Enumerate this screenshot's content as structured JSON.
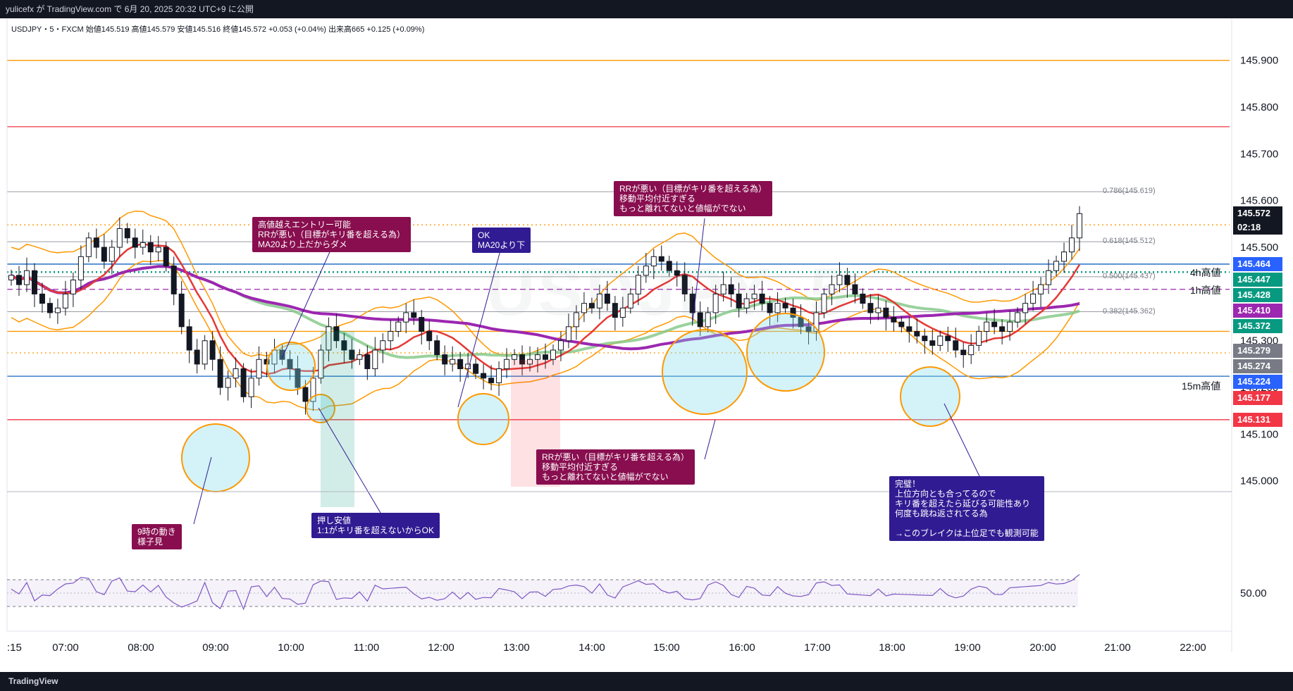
{
  "header": {
    "publish_text": "yulicefx が TradingView.com で 6月 20, 2025 20:32 UTC+9 に公開"
  },
  "symbol_info": "USDJPY・5・FXCM  始値145.519  高値145.579  安値145.516  終値145.572  +0.053 (+0.04%)  出来高665  +0.125 (+0.09%)",
  "watermark": "USDJPY, 5",
  "footer": {
    "logo": "TradingView"
  },
  "colors": {
    "bull": "#131722",
    "bear": "#131722",
    "ma_red": "#e53935",
    "ma_green": "#81c784",
    "ma_purple": "#9c27b0",
    "band": "#ff9800",
    "blue_line": "#1565c0",
    "annotation_maroon": "#880e4f",
    "annotation_navy": "#311b92"
  },
  "chart_data": {
    "type": "candlestick",
    "symbol": "USDJPY",
    "timeframe": "5",
    "x_ticks": [
      ":15",
      "07:00",
      "08:00",
      "09:00",
      "10:00",
      "11:00",
      "12:00",
      "13:00",
      "14:00",
      "15:00",
      "16:00",
      "17:00",
      "18:00",
      "19:00",
      "20:00",
      "21:00",
      "22:00"
    ],
    "y_ticks": [
      145.0,
      145.1,
      145.2,
      145.3,
      145.4,
      145.5,
      145.6,
      145.7,
      145.8,
      145.9
    ],
    "y_tick_labels": [
      "145.000",
      "145.100",
      "145.200",
      "145.300",
      "145.400",
      "145.500",
      "145.600",
      "145.700",
      "145.800",
      "145.900"
    ],
    "ylim": [
      144.98,
      145.99
    ],
    "price_tags": [
      {
        "value": 145.572,
        "label": "145.572",
        "sub": "02:18",
        "color": "#131722"
      },
      {
        "value": 145.464,
        "label": "145.464",
        "color": "#2962ff"
      },
      {
        "value": 145.447,
        "label": "145.447",
        "color": "#089981"
      },
      {
        "value": 145.428,
        "label": "145.428",
        "color": "#089981"
      },
      {
        "value": 145.41,
        "label": "145.410",
        "color": "#9c27b0"
      },
      {
        "value": 145.372,
        "label": "145.372",
        "color": "#089981"
      },
      {
        "value": 145.279,
        "label": "145.279",
        "color": "#787b86"
      },
      {
        "value": 145.274,
        "label": "145.274",
        "color": "#787b86"
      },
      {
        "value": 145.224,
        "label": "145.224",
        "color": "#2962ff"
      },
      {
        "value": 145.177,
        "label": "145.177",
        "color": "#f23645"
      },
      {
        "value": 145.131,
        "label": "145.131",
        "color": "#f23645"
      }
    ],
    "horizontal_lines": [
      {
        "value": 145.9,
        "color": "#ff9800",
        "style": "solid",
        "label": ""
      },
      {
        "value": 145.758,
        "color": "#f23645",
        "style": "solid",
        "label": ""
      },
      {
        "value": 145.464,
        "color": "#1565c0",
        "style": "solid",
        "label": ""
      },
      {
        "value": 145.447,
        "color": "#089981",
        "style": "dotted",
        "label": "4h高値"
      },
      {
        "value": 145.41,
        "color": "#9c27b0",
        "style": "dashed",
        "label": "1h高値"
      },
      {
        "value": 145.548,
        "color": "#ff9800",
        "style": "dotted",
        "label": ""
      },
      {
        "value": 145.274,
        "color": "#ff9800",
        "style": "dotted",
        "label": ""
      },
      {
        "value": 145.32,
        "color": "#ff9800",
        "style": "solid",
        "label": ""
      },
      {
        "value": 145.224,
        "color": "#1565c0",
        "style": "solid",
        "label": "15m高値"
      },
      {
        "value": 145.131,
        "color": "#f23645",
        "style": "solid",
        "label": ""
      }
    ],
    "fib_levels": [
      {
        "value": 145.619,
        "label": "0.786(145.619)"
      },
      {
        "value": 145.512,
        "label": "0.618(145.512)"
      },
      {
        "value": 145.437,
        "label": "0.500(145.437)"
      },
      {
        "value": 145.362,
        "label": "0.382(145.362)"
      }
    ],
    "ohlc_last": {
      "open": 145.519,
      "high": 145.579,
      "low": 145.516,
      "close": 145.572,
      "volume": 665
    },
    "close_series": [
      145.44,
      145.42,
      145.45,
      145.4,
      145.38,
      145.36,
      145.37,
      145.4,
      145.43,
      145.48,
      145.52,
      145.5,
      145.47,
      145.5,
      145.54,
      145.52,
      145.5,
      145.51,
      145.49,
      145.5,
      145.46,
      145.4,
      145.33,
      145.28,
      145.25,
      145.3,
      145.26,
      145.2,
      145.22,
      145.24,
      145.18,
      145.22,
      145.26,
      145.25,
      145.28,
      145.26,
      145.24,
      145.2,
      145.17,
      145.22,
      145.28,
      145.33,
      145.3,
      145.28,
      145.26,
      145.27,
      145.24,
      145.28,
      145.3,
      145.32,
      145.34,
      145.36,
      145.35,
      145.32,
      145.3,
      145.27,
      145.25,
      145.26,
      145.24,
      145.25,
      145.23,
      145.22,
      145.21,
      145.24,
      145.26,
      145.27,
      145.25,
      145.26,
      145.27,
      145.26,
      145.28,
      145.3,
      145.33,
      145.36,
      145.38,
      145.37,
      145.4,
      145.38,
      145.35,
      145.37,
      145.4,
      145.44,
      145.46,
      145.48,
      145.47,
      145.45,
      145.44,
      145.4,
      145.36,
      145.33,
      145.36,
      145.4,
      145.42,
      145.4,
      145.37,
      145.39,
      145.4,
      145.38,
      145.36,
      145.38,
      145.37,
      145.35,
      145.33,
      145.32,
      145.36,
      145.4,
      145.42,
      145.44,
      145.42,
      145.4,
      145.38,
      145.36,
      145.37,
      145.35,
      145.34,
      145.33,
      145.32,
      145.31,
      145.3,
      145.29,
      145.31,
      145.3,
      145.28,
      145.27,
      145.29,
      145.32,
      145.34,
      145.33,
      145.32,
      145.34,
      145.36,
      145.38,
      145.4,
      145.42,
      145.45,
      145.47,
      145.49,
      145.52,
      145.572
    ],
    "rsi_level": 50.0,
    "rsi_tick_label": "50.00"
  },
  "annotations": [
    {
      "id": "a1",
      "text": "高値越えエントリー可能\nRRが悪い（目標がキリ番を超える為）\nMA20より上だからダメ",
      "color": "maroon"
    },
    {
      "id": "a2",
      "text": "OK\nMA20より下",
      "color": "navy"
    },
    {
      "id": "a3",
      "text": "RRが悪い（目標がキリ番を超える為）\n移動平均付近すぎる\nもっと離れてないと値幅がでない",
      "color": "maroon"
    },
    {
      "id": "a4",
      "text": "RRが悪い（目標がキリ番を超える為）\n移動平均付近すぎる\nもっと離れてないと値幅がでない",
      "color": "maroon"
    },
    {
      "id": "a5",
      "text": "押し安値\n1:1がキリ番を超えないからOK",
      "color": "navy"
    },
    {
      "id": "a6",
      "text": "9時の動き\n様子見",
      "color": "maroon"
    },
    {
      "id": "a7",
      "text": "完璧！\n上位方向とも合ってるので\nキリ番を超えたら延びる可能性あり\n何度も跳ね返されてる為\n\n→このブレイクは上位足でも観測可能",
      "color": "navy"
    }
  ]
}
